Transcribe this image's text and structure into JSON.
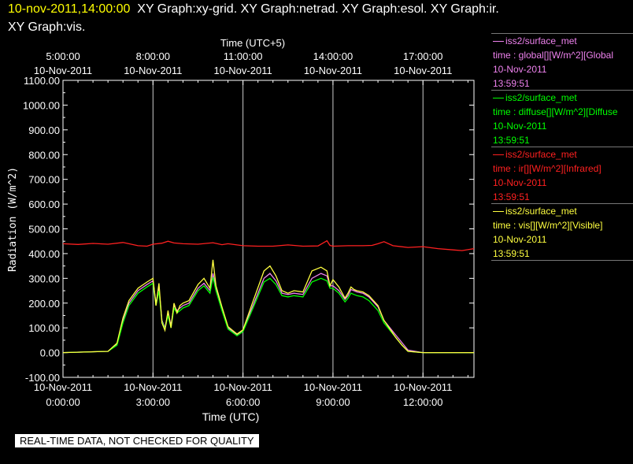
{
  "header": {
    "timestamp": "10-nov-2011,14:00:00",
    "line1_rest": "XY Graph:xy-grid.  XY Graph:netrad.  XY Graph:esol.  XY Graph:ir.",
    "line2": "XY Graph:vis."
  },
  "footer": {
    "notice": "REAL-TIME DATA, NOT CHECKED FOR QUALITY"
  },
  "legend": [
    {
      "source": "iss2/surface_met",
      "variable": "time : global[][W/m^2][Global",
      "date": "10-Nov-2011",
      "time": "13:59:51",
      "color": "#ee82ee"
    },
    {
      "source": "iss2/surface_met",
      "variable": "time : diffuse[][W/m^2][Diffuse",
      "date": "10-Nov-2011",
      "time": "13:59:51",
      "color": "#00ff00"
    },
    {
      "source": "iss2/surface_met",
      "variable": "time : ir[][W/m^2][Infrared]",
      "date": "10-Nov-2011",
      "time": "13:59:51",
      "color": "#ff2020"
    },
    {
      "source": "iss2/surface_met",
      "variable": "time : vis[][W/m^2][Visible]",
      "date": "10-Nov-2011",
      "time": "13:59:51",
      "color": "#ffff40"
    }
  ],
  "chart_data": {
    "type": "line",
    "ylabel": "Radiation (W/m^2)",
    "xlabel_bottom": "Time (UTC)",
    "xlabel_top": "Time (UTC+5)",
    "ylim": [
      -100,
      1100
    ],
    "xlim_hours": [
      0,
      13.7
    ],
    "yticks": [
      "1100.00",
      "1000.00",
      "900.00",
      "800.00",
      "700.00",
      "600.00",
      "500.00",
      "400.00",
      "300.00",
      "200.00",
      "100.00",
      "0.00",
      "-100.00"
    ],
    "bottom_ticks": [
      {
        "hour": 0,
        "date": "10-Nov-2011",
        "time": "0:00:00"
      },
      {
        "hour": 3,
        "date": "10-Nov-2011",
        "time": "3:00:00"
      },
      {
        "hour": 6,
        "date": "10-Nov-2011",
        "time": "6:00:00"
      },
      {
        "hour": 9,
        "date": "10-Nov-2011",
        "time": "9:00:00"
      },
      {
        "hour": 12,
        "date": "10-Nov-2011",
        "time": "12:00:00"
      }
    ],
    "top_ticks": [
      {
        "hour": 0,
        "time": "5:00:00",
        "date": "10-Nov-2011"
      },
      {
        "hour": 3,
        "time": "8:00:00",
        "date": "10-Nov-2011"
      },
      {
        "hour": 6,
        "time": "11:00:00",
        "date": "10-Nov-2011"
      },
      {
        "hour": 9,
        "time": "14:00:00",
        "date": "10-Nov-2011"
      },
      {
        "hour": 12,
        "time": "17:00:00",
        "date": "10-Nov-2011"
      }
    ],
    "vgrid_hours": [
      3,
      6,
      9,
      12
    ],
    "series": [
      {
        "name": "global",
        "color": "#ee82ee",
        "x": [
          0,
          1.5,
          1.8,
          2.0,
          2.2,
          2.5,
          2.8,
          3.0,
          3.1,
          3.2,
          3.3,
          3.4,
          3.5,
          3.6,
          3.7,
          3.8,
          3.9,
          4.0,
          4.2,
          4.5,
          4.7,
          4.9,
          5.0,
          5.1,
          5.3,
          5.5,
          5.8,
          6.0,
          6.3,
          6.7,
          6.9,
          7.1,
          7.3,
          7.5,
          7.7,
          8.0,
          8.3,
          8.6,
          8.8,
          8.9,
          9.0,
          9.2,
          9.4,
          9.5,
          9.6,
          9.7,
          9.8,
          10.0,
          10.2,
          10.5,
          10.7,
          10.9,
          11.1,
          11.3,
          11.5,
          12.0,
          12.3,
          12.5,
          13.0,
          13.7
        ],
        "y": [
          0,
          5,
          35,
          130,
          200,
          250,
          275,
          290,
          200,
          260,
          130,
          100,
          160,
          110,
          190,
          170,
          180,
          190,
          200,
          260,
          280,
          250,
          320,
          260,
          180,
          100,
          72,
          90,
          180,
          300,
          320,
          290,
          240,
          235,
          240,
          235,
          300,
          320,
          310,
          270,
          270,
          250,
          215,
          230,
          255,
          250,
          245,
          240,
          225,
          185,
          130,
          100,
          70,
          40,
          10,
          0,
          0,
          0,
          0,
          0
        ]
      },
      {
        "name": "diffuse",
        "color": "#00ff00",
        "x": [
          0,
          1.5,
          1.8,
          2.0,
          2.2,
          2.5,
          2.8,
          3.0,
          3.1,
          3.2,
          3.3,
          3.4,
          3.5,
          3.6,
          3.7,
          3.8,
          3.9,
          4.0,
          4.2,
          4.5,
          4.7,
          4.9,
          5.0,
          5.1,
          5.3,
          5.5,
          5.8,
          6.0,
          6.3,
          6.7,
          6.9,
          7.1,
          7.3,
          7.5,
          7.7,
          8.0,
          8.3,
          8.6,
          8.8,
          8.9,
          9.0,
          9.2,
          9.4,
          9.5,
          9.6,
          9.7,
          9.8,
          10.0,
          10.2,
          10.5,
          10.7,
          10.9,
          11.1,
          11.3,
          11.5,
          12.0,
          12.3,
          12.5,
          13.0,
          13.7
        ],
        "y": [
          0,
          5,
          30,
          120,
          190,
          240,
          265,
          280,
          190,
          250,
          125,
          95,
          150,
          100,
          180,
          160,
          170,
          180,
          190,
          250,
          270,
          240,
          305,
          250,
          170,
          95,
          68,
          85,
          170,
          285,
          300,
          275,
          230,
          225,
          230,
          225,
          285,
          300,
          290,
          260,
          260,
          240,
          205,
          220,
          240,
          235,
          230,
          225,
          210,
          170,
          120,
          90,
          60,
          30,
          5,
          0,
          0,
          0,
          0,
          0
        ]
      },
      {
        "name": "ir",
        "color": "#ff2020",
        "x": [
          0,
          0.5,
          1.0,
          1.5,
          2.0,
          2.5,
          2.8,
          3.0,
          3.3,
          3.5,
          3.7,
          4.0,
          4.5,
          5.0,
          5.3,
          5.5,
          6.0,
          6.5,
          7.0,
          7.5,
          8.0,
          8.5,
          8.7,
          8.8,
          8.9,
          9.0,
          9.5,
          10.0,
          10.3,
          10.5,
          10.7,
          11.0,
          11.5,
          12.0,
          12.5,
          13.0,
          13.3,
          13.7
        ],
        "y": [
          440,
          437,
          441,
          438,
          445,
          432,
          430,
          438,
          442,
          450,
          443,
          440,
          438,
          444,
          436,
          440,
          432,
          430,
          430,
          435,
          430,
          431,
          445,
          452,
          433,
          430,
          432,
          432,
          433,
          440,
          448,
          432,
          425,
          428,
          420,
          415,
          412,
          420
        ]
      },
      {
        "name": "vis",
        "color": "#ffff40",
        "x": [
          0,
          1.5,
          1.8,
          2.0,
          2.2,
          2.5,
          2.8,
          3.0,
          3.1,
          3.2,
          3.3,
          3.4,
          3.5,
          3.6,
          3.7,
          3.8,
          3.9,
          4.0,
          4.2,
          4.5,
          4.7,
          4.9,
          5.0,
          5.1,
          5.3,
          5.5,
          5.8,
          6.0,
          6.3,
          6.7,
          6.9,
          7.1,
          7.3,
          7.5,
          7.7,
          8.0,
          8.3,
          8.6,
          8.8,
          8.9,
          9.0,
          9.2,
          9.4,
          9.5,
          9.6,
          9.7,
          9.8,
          10.0,
          10.2,
          10.5,
          10.7,
          10.9,
          11.1,
          11.3,
          11.5,
          12.0,
          12.3,
          12.5,
          13.0,
          13.7
        ],
        "y": [
          0,
          5,
          38,
          140,
          210,
          260,
          285,
          300,
          190,
          280,
          120,
          90,
          170,
          100,
          200,
          160,
          190,
          200,
          210,
          275,
          300,
          260,
          375,
          270,
          185,
          105,
          75,
          92,
          195,
          330,
          350,
          310,
          250,
          240,
          250,
          245,
          330,
          345,
          330,
          270,
          295,
          265,
          220,
          240,
          265,
          255,
          250,
          245,
          230,
          190,
          130,
          95,
          60,
          30,
          5,
          0,
          0,
          0,
          0,
          0
        ]
      }
    ]
  }
}
